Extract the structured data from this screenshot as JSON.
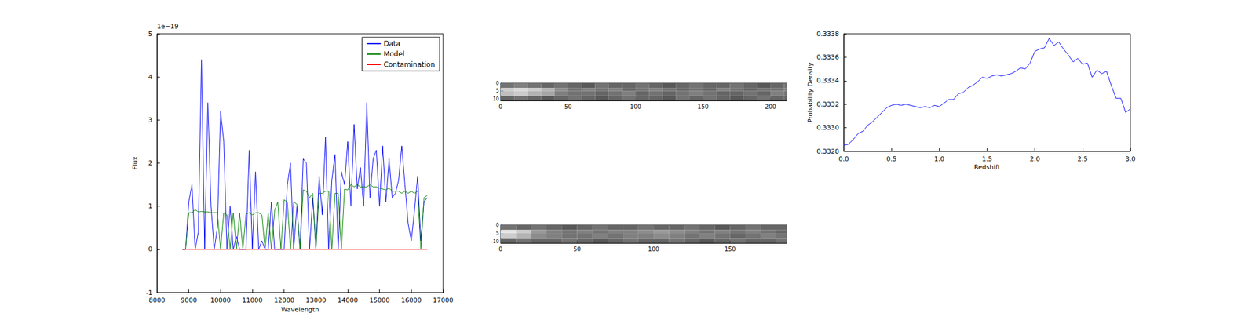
{
  "chart_data": [
    {
      "type": "line",
      "xlabel": "Wavelength",
      "ylabel": "Flux",
      "annotation": "1e−19",
      "x": [
        8800,
        8900,
        9000,
        9100,
        9200,
        9300,
        9400,
        9500,
        9600,
        9700,
        9800,
        9900,
        10000,
        10100,
        10200,
        10300,
        10400,
        10500,
        10600,
        10700,
        10800,
        10900,
        11000,
        11100,
        11200,
        11300,
        11400,
        11500,
        11600,
        11700,
        11800,
        11900,
        12000,
        12100,
        12200,
        12300,
        12400,
        12500,
        12600,
        12700,
        12800,
        12900,
        13000,
        13100,
        13200,
        13300,
        13400,
        13500,
        13600,
        13700,
        13800,
        13900,
        14000,
        14100,
        14200,
        14300,
        14400,
        14500,
        14600,
        14700,
        14800,
        14900,
        15000,
        15100,
        15200,
        15300,
        15400,
        15500,
        15600,
        15700,
        15800,
        15900,
        16000,
        16100,
        16200,
        16300,
        16400,
        16500
      ],
      "series": [
        {
          "name": "Data",
          "color": "#0000ff",
          "values": [
            0,
            0,
            1.1,
            1.5,
            0,
            0.4,
            4.4,
            0,
            3.4,
            1.0,
            0,
            0.5,
            3.2,
            2.5,
            0,
            1.0,
            0,
            0.3,
            0,
            0,
            0,
            2.3,
            0,
            1.8,
            0,
            0.2,
            0,
            0,
            1.1,
            0,
            0,
            0,
            0,
            1.5,
            2.0,
            0,
            1.0,
            0,
            2.1,
            2.0,
            0,
            1.2,
            0,
            1.7,
            0.8,
            2.6,
            0,
            1.6,
            2.2,
            0,
            1.8,
            1.5,
            2.5,
            1.0,
            2.9,
            1.4,
            1.9,
            1.0,
            3.4,
            1.2,
            2.1,
            2.3,
            1.0,
            2.4,
            1.1,
            2.1,
            1.2,
            1.3,
            1.6,
            2.4,
            1.5,
            0.6,
            0.2,
            0.9,
            1.7,
            0.2,
            1.1,
            1.2
          ]
        },
        {
          "name": "Model",
          "color": "#008000",
          "values": [
            0,
            0,
            0.85,
            0.85,
            0.92,
            0.87,
            0.88,
            0.87,
            0.87,
            0.85,
            0.85,
            0.85,
            0,
            0.85,
            0.8,
            0,
            0.85,
            0,
            0.85,
            0,
            0.82,
            0.85,
            0.8,
            0.85,
            0.85,
            0.8,
            0,
            0.85,
            0,
            0.9,
            1.1,
            0,
            1.15,
            1.1,
            0,
            1.1,
            1.05,
            0,
            1.38,
            1.35,
            1.2,
            1.3,
            0,
            1.3,
            1.3,
            1.35,
            1.35,
            0,
            1.3,
            1.3,
            0,
            1.4,
            1.38,
            1.5,
            1.45,
            1.5,
            1.45,
            1.45,
            1.45,
            1.5,
            1.45,
            1.45,
            1.42,
            1.4,
            1.38,
            1.42,
            1.35,
            1.35,
            1.35,
            1.3,
            1.35,
            1.3,
            1.35,
            1.3,
            1.35,
            0,
            1.2,
            1.25
          ]
        },
        {
          "name": "Contamination",
          "color": "#ff0000",
          "values": [
            0,
            0,
            0,
            0,
            0,
            0,
            0,
            0,
            0,
            0,
            0,
            0,
            0,
            0,
            0,
            0,
            0,
            0,
            0,
            0,
            0,
            0,
            0,
            0,
            0,
            0,
            0,
            0,
            0,
            0,
            0,
            0,
            0,
            0,
            0,
            0,
            0,
            0,
            0,
            0,
            0,
            0,
            0,
            0,
            0,
            0,
            0,
            0,
            0,
            0,
            0,
            0,
            0,
            0,
            0,
            0,
            0,
            0,
            0,
            0,
            0,
            0,
            0,
            0,
            0,
            0,
            0,
            0,
            0,
            0,
            0,
            0,
            0,
            0,
            0,
            0,
            0,
            0
          ]
        }
      ],
      "xlim": [
        8000,
        17000
      ],
      "xticks": [
        8000,
        9000,
        10000,
        11000,
        12000,
        13000,
        14000,
        15000,
        16000,
        17000
      ],
      "ylim": [
        -1,
        5
      ],
      "yticks": [
        -1,
        0,
        1,
        2,
        3,
        4,
        5
      ],
      "legend": "upper right",
      "grid": false
    },
    {
      "type": "heatmap",
      "x_edges": [
        0,
        10,
        20,
        30,
        40,
        50,
        60,
        70,
        80,
        90,
        100,
        110,
        120,
        130,
        140,
        150,
        160,
        170,
        180,
        190,
        200,
        210,
        212
      ],
      "y_edges": [
        0,
        3,
        5,
        8,
        11
      ],
      "cells": [
        [
          0.45,
          0.5,
          0.45,
          0.4,
          0.45,
          0.4,
          0.35,
          0.45,
          0.4,
          0.4,
          0.45,
          0.4,
          0.35,
          0.4,
          0.45,
          0.4,
          0.4,
          0.45,
          0.4,
          0.35,
          0.4,
          0.45
        ],
        [
          0.8,
          0.85,
          0.8,
          0.7,
          0.55,
          0.45,
          0.5,
          0.45,
          0.5,
          0.4,
          0.45,
          0.5,
          0.45,
          0.4,
          0.45,
          0.4,
          0.5,
          0.45,
          0.4,
          0.45,
          0.45,
          0.5
        ],
        [
          0.75,
          0.8,
          0.7,
          0.65,
          0.5,
          0.45,
          0.45,
          0.4,
          0.45,
          0.5,
          0.4,
          0.45,
          0.4,
          0.45,
          0.5,
          0.45,
          0.4,
          0.4,
          0.45,
          0.4,
          0.5,
          0.45
        ],
        [
          0.4,
          0.45,
          0.4,
          0.35,
          0.4,
          0.45,
          0.4,
          0.35,
          0.4,
          0.45,
          0.4,
          0.4,
          0.35,
          0.45,
          0.4,
          0.45,
          0.4,
          0.35,
          0.4,
          0.45,
          0.4,
          0.4
        ]
      ],
      "zlim": [
        0,
        1
      ],
      "xlim": [
        0,
        212
      ],
      "xticks": [
        0,
        50,
        100,
        150,
        200
      ],
      "ylim": [
        0,
        11
      ],
      "yticks": [
        0,
        5,
        10
      ],
      "grid": false
    },
    {
      "type": "heatmap",
      "x_edges": [
        0,
        10,
        20,
        30,
        40,
        50,
        60,
        70,
        80,
        90,
        100,
        110,
        120,
        130,
        140,
        150,
        160,
        170,
        180,
        187
      ],
      "y_edges": [
        0,
        3,
        5,
        8,
        11
      ],
      "cells": [
        [
          0.45,
          0.4,
          0.45,
          0.4,
          0.35,
          0.4,
          0.45,
          0.4,
          0.4,
          0.45,
          0.4,
          0.4,
          0.45,
          0.4,
          0.35,
          0.4,
          0.45,
          0.4,
          0.4
        ],
        [
          0.9,
          0.8,
          0.6,
          0.5,
          0.45,
          0.5,
          0.45,
          0.5,
          0.5,
          0.55,
          0.6,
          0.55,
          0.5,
          0.45,
          0.5,
          0.45,
          0.5,
          0.45,
          0.4
        ],
        [
          0.8,
          0.7,
          0.55,
          0.5,
          0.45,
          0.45,
          0.5,
          0.45,
          0.5,
          0.5,
          0.55,
          0.5,
          0.45,
          0.5,
          0.45,
          0.4,
          0.45,
          0.5,
          0.45
        ],
        [
          0.4,
          0.45,
          0.4,
          0.4,
          0.45,
          0.4,
          0.35,
          0.4,
          0.45,
          0.4,
          0.4,
          0.45,
          0.4,
          0.35,
          0.4,
          0.45,
          0.4,
          0.4,
          0.45
        ]
      ],
      "zlim": [
        0,
        1
      ],
      "xlim": [
        0,
        187
      ],
      "xticks": [
        0,
        50,
        100,
        150
      ],
      "ylim": [
        0,
        11
      ],
      "yticks": [
        0,
        5,
        10
      ],
      "grid": false
    },
    {
      "type": "line",
      "xlabel": "Redshift",
      "ylabel": "Probability Density",
      "x": [
        0,
        0.05,
        0.1,
        0.15,
        0.2,
        0.25,
        0.3,
        0.35,
        0.4,
        0.45,
        0.5,
        0.55,
        0.6,
        0.65,
        0.7,
        0.75,
        0.8,
        0.85,
        0.9,
        0.95,
        1.0,
        1.05,
        1.1,
        1.15,
        1.2,
        1.25,
        1.3,
        1.35,
        1.4,
        1.45,
        1.5,
        1.55,
        1.6,
        1.65,
        1.7,
        1.75,
        1.8,
        1.85,
        1.9,
        1.95,
        2.0,
        2.05,
        2.1,
        2.15,
        2.2,
        2.25,
        2.3,
        2.35,
        2.4,
        2.45,
        2.5,
        2.55,
        2.6,
        2.65,
        2.7,
        2.75,
        2.8,
        2.85,
        2.9,
        2.95,
        3.0
      ],
      "color": "#0000ff",
      "values": [
        0.33285,
        0.33286,
        0.3329,
        0.33295,
        0.33297,
        0.33302,
        0.33305,
        0.33309,
        0.33313,
        0.33317,
        0.33319,
        0.3332,
        0.33319,
        0.3332,
        0.33319,
        0.33318,
        0.33317,
        0.33318,
        0.33317,
        0.33319,
        0.33318,
        0.33321,
        0.33324,
        0.33324,
        0.33329,
        0.3333,
        0.33334,
        0.33336,
        0.33339,
        0.33343,
        0.33342,
        0.33344,
        0.33345,
        0.33344,
        0.33345,
        0.33346,
        0.33348,
        0.33351,
        0.3335,
        0.33355,
        0.33365,
        0.33367,
        0.33368,
        0.33376,
        0.3337,
        0.33373,
        0.33367,
        0.33362,
        0.33356,
        0.33359,
        0.33354,
        0.33355,
        0.33343,
        0.33349,
        0.33346,
        0.33348,
        0.33336,
        0.33325,
        0.33325,
        0.33313,
        0.33316
      ],
      "xlim": [
        0,
        3
      ],
      "xticks": [
        {
          "value": 0,
          "label": "0.0"
        },
        0.5,
        {
          "value": 1,
          "label": "1.0"
        },
        1.5,
        {
          "value": 2,
          "label": "2.0"
        },
        2.5,
        {
          "value": 3,
          "label": "3.0"
        }
      ],
      "ylim": [
        0.3328,
        0.3338
      ],
      "yticks": [
        0.3328,
        {
          "value": 0.333,
          "label": "0.3330"
        },
        0.3332,
        0.3334,
        0.3336,
        0.3338
      ],
      "grid": false
    }
  ]
}
